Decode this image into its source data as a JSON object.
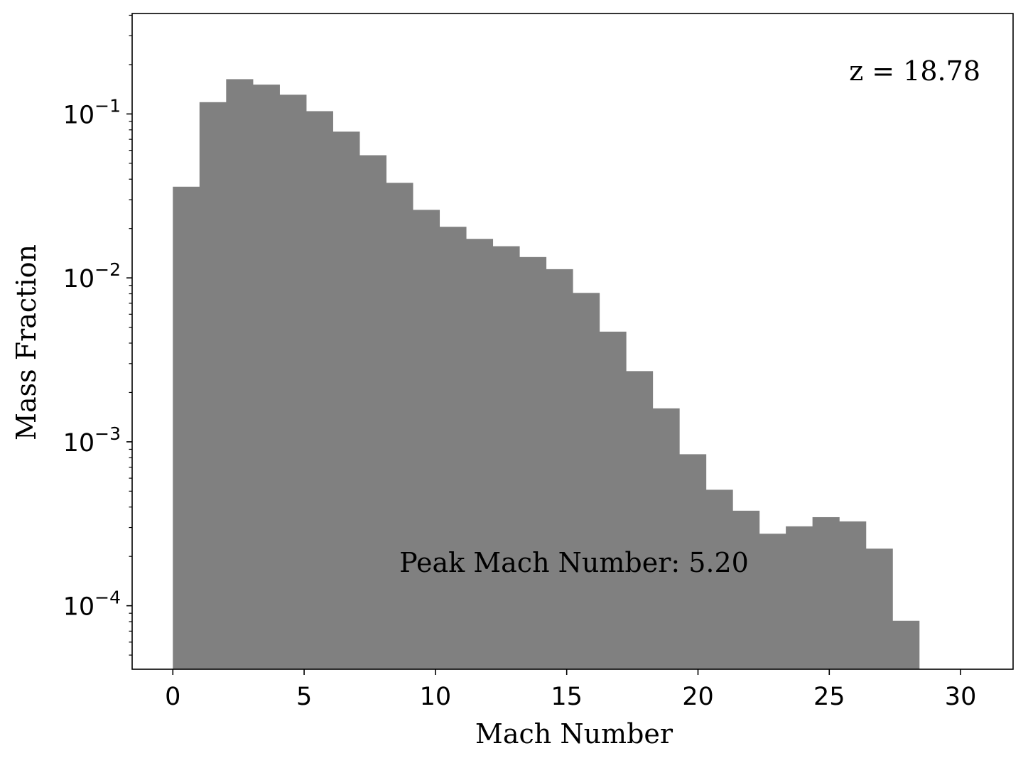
{
  "chart_data": {
    "type": "bar",
    "xlabel": "Mach Number",
    "ylabel": "Mass Fraction",
    "yscale": "log",
    "xlim": [
      -1.55,
      32.0
    ],
    "ylim": [
      4.1e-05,
      0.41
    ],
    "xticks": [
      0,
      5,
      10,
      15,
      20,
      25,
      30
    ],
    "yticks": [
      {
        "value": 0.1,
        "mantissa": "10",
        "exponent": "−1"
      },
      {
        "value": 0.01,
        "mantissa": "10",
        "exponent": "−2"
      },
      {
        "value": 0.001,
        "mantissa": "10",
        "exponent": "−3"
      },
      {
        "value": 0.0001,
        "mantissa": "10",
        "exponent": "−4"
      }
    ],
    "bin_width": 1.015,
    "bin_start": 0.0,
    "values": [
      0.036,
      0.118,
      0.163,
      0.151,
      0.131,
      0.104,
      0.078,
      0.056,
      0.038,
      0.026,
      0.0205,
      0.0173,
      0.0156,
      0.0134,
      0.0113,
      0.0081,
      0.0047,
      0.0027,
      0.0016,
      0.00084,
      0.00051,
      0.00038,
      0.000275,
      0.000305,
      0.000347,
      0.000327,
      0.000223,
      8.1e-05
    ],
    "bar_color": "#808080",
    "grid": false,
    "annotations": {
      "redshift": "z = 18.78",
      "peak": "Peak Mach Number: 5.20"
    }
  }
}
